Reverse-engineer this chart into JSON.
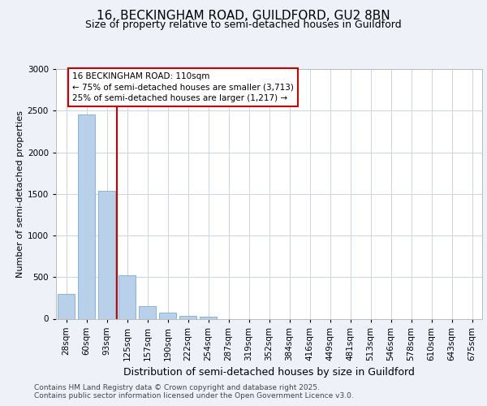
{
  "title1": "16, BECKINGHAM ROAD, GUILDFORD, GU2 8BN",
  "title2": "Size of property relative to semi-detached houses in Guildford",
  "xlabel": "Distribution of semi-detached houses by size in Guildford",
  "ylabel": "Number of semi-detached properties",
  "categories": [
    "28sqm",
    "60sqm",
    "93sqm",
    "125sqm",
    "157sqm",
    "190sqm",
    "222sqm",
    "254sqm",
    "287sqm",
    "319sqm",
    "352sqm",
    "384sqm",
    "416sqm",
    "449sqm",
    "481sqm",
    "513sqm",
    "546sqm",
    "578sqm",
    "610sqm",
    "643sqm",
    "675sqm"
  ],
  "values": [
    300,
    2450,
    1540,
    520,
    148,
    75,
    35,
    25,
    0,
    0,
    0,
    0,
    0,
    0,
    0,
    0,
    0,
    0,
    0,
    0,
    0
  ],
  "bar_color": "#b8d0ea",
  "bar_edge_color": "#7aadd4",
  "red_line_x": 2.5,
  "annotation_text": "16 BECKINGHAM ROAD: 110sqm\n← 75% of semi-detached houses are smaller (3,713)\n25% of semi-detached houses are larger (1,217) →",
  "annotation_box_color": "#ffffff",
  "annotation_border_color": "#cc0000",
  "footer": "Contains HM Land Registry data © Crown copyright and database right 2025.\nContains public sector information licensed under the Open Government Licence v3.0.",
  "ylim": [
    0,
    3000
  ],
  "yticks": [
    0,
    500,
    1000,
    1500,
    2000,
    2500,
    3000
  ],
  "background_color": "#eef2f8",
  "plot_bg_color": "#ffffff",
  "grid_color": "#ccd4e0",
  "title1_fontsize": 11,
  "title2_fontsize": 9,
  "xlabel_fontsize": 9,
  "ylabel_fontsize": 8,
  "tick_fontsize": 7.5,
  "footer_fontsize": 6.5
}
